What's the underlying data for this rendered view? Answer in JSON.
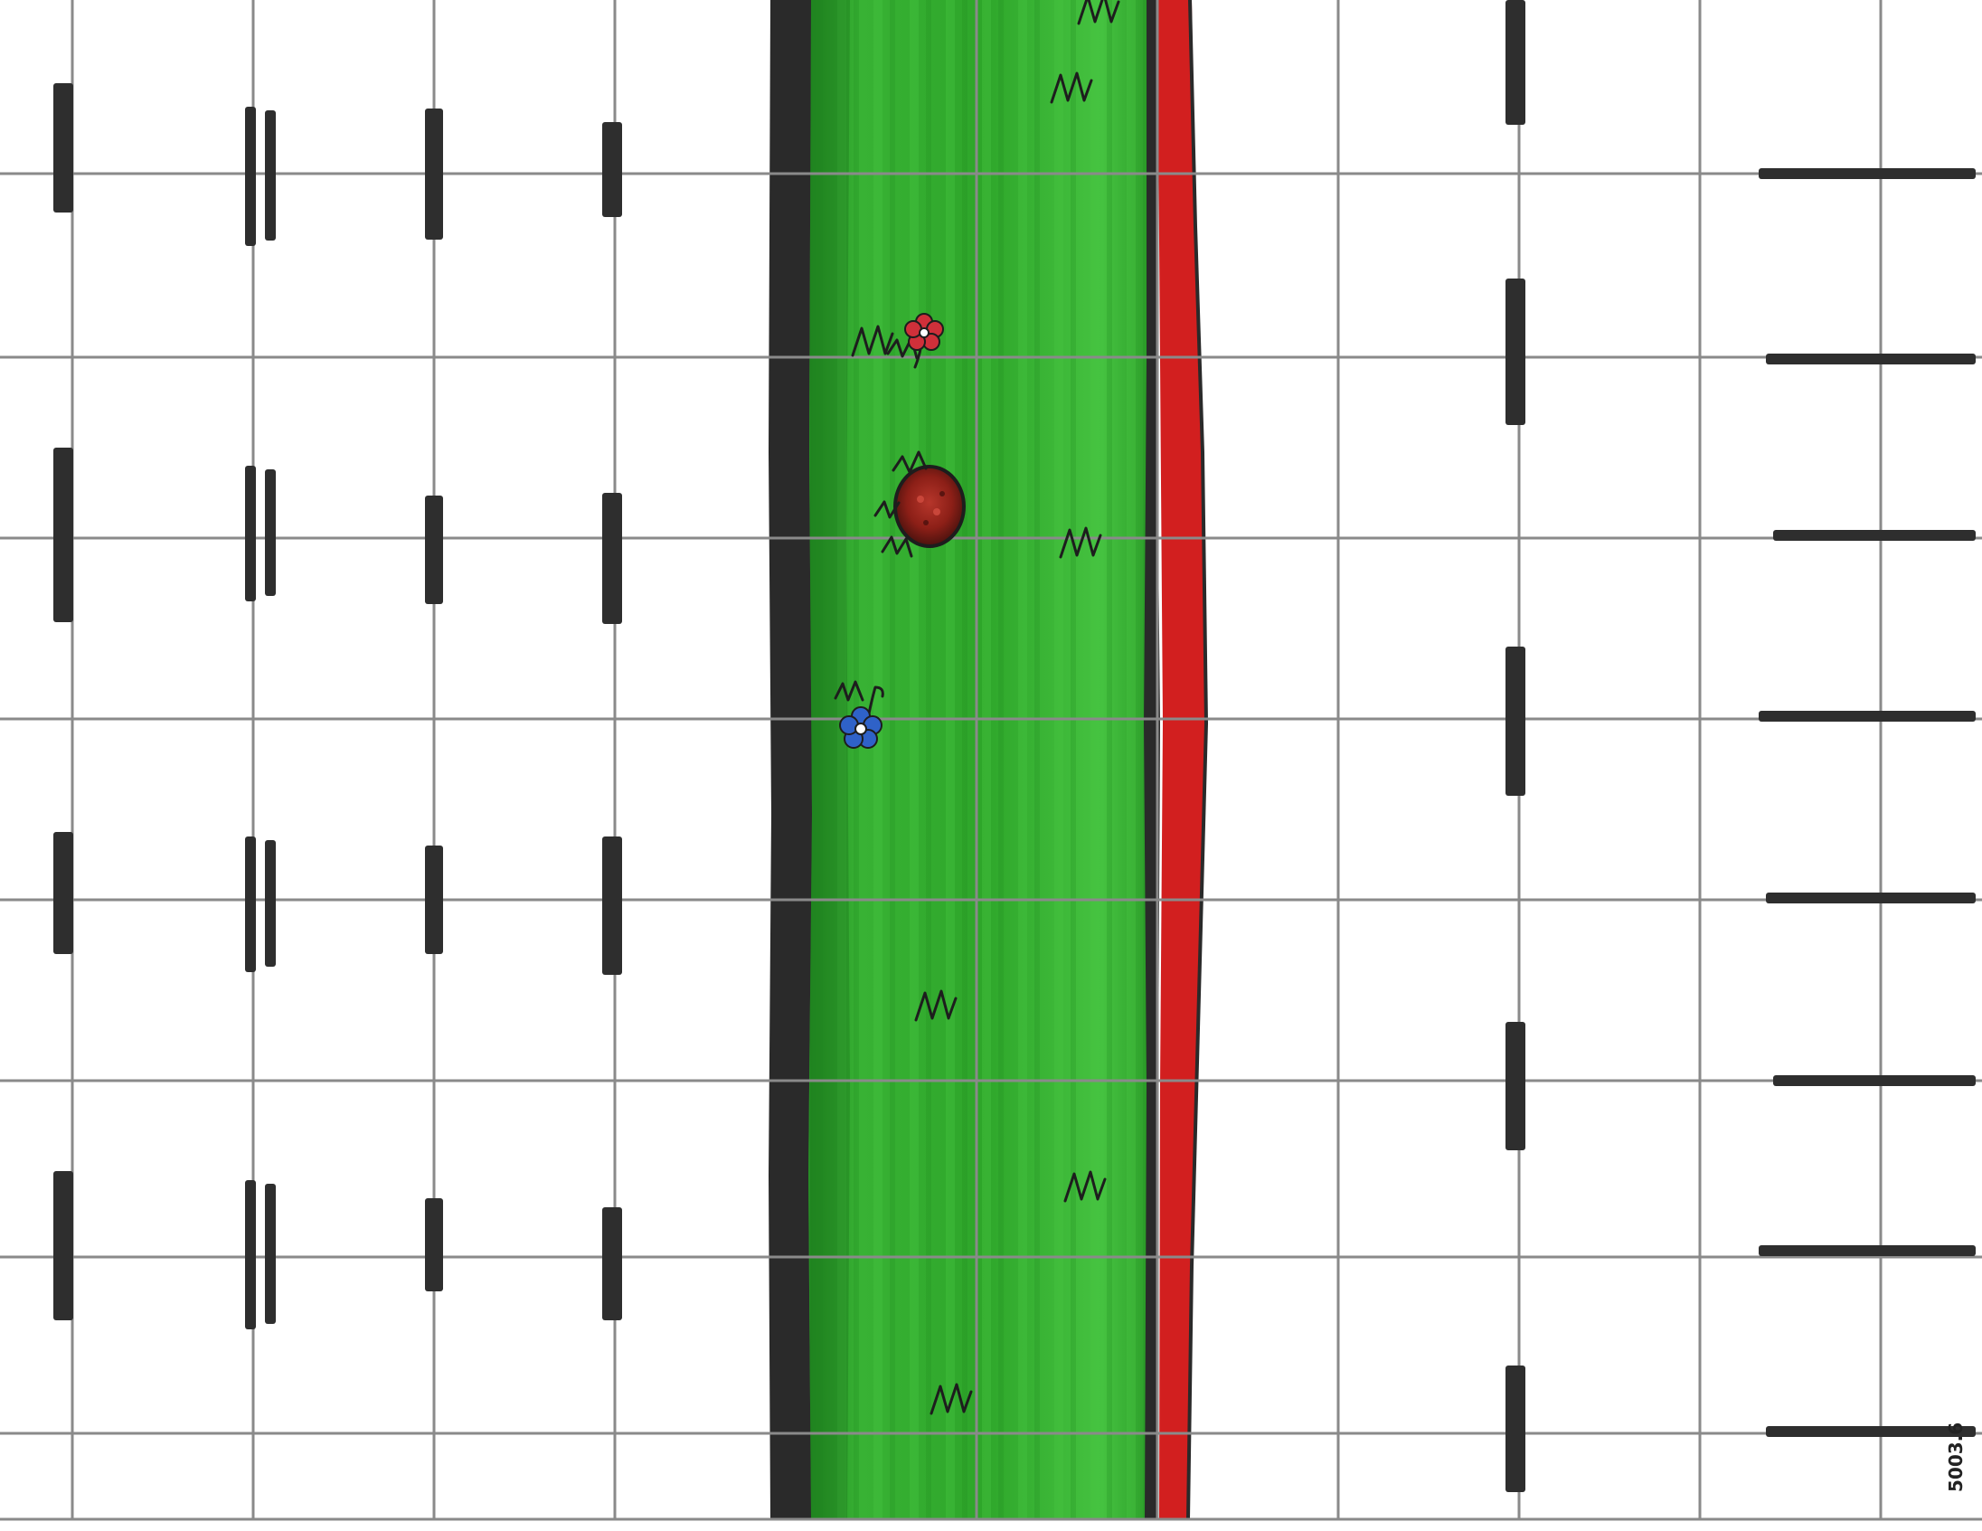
{
  "map": {
    "kind": "top-down battle map tile",
    "terrain": [
      "road-left-lanes",
      "grass-median",
      "curb-red",
      "road-right-lanes"
    ],
    "artist_mark": "5003.6",
    "colors": {
      "paper": "#ffffff",
      "grid": "#8a8a8a",
      "grass": "#2fa52b",
      "grass_light": "#4cc544",
      "grass_dark": "#1f8a1f",
      "edge_dark": "#2a2a2a",
      "curb_red": "#d21f1f",
      "lane_paint": "#2e2e2e"
    },
    "features": [
      {
        "name": "red-flower",
        "color": "#d0303a"
      },
      {
        "name": "blue-flower",
        "color": "#2f62c8"
      },
      {
        "name": "mound",
        "color": "#8c1f17"
      }
    ]
  }
}
